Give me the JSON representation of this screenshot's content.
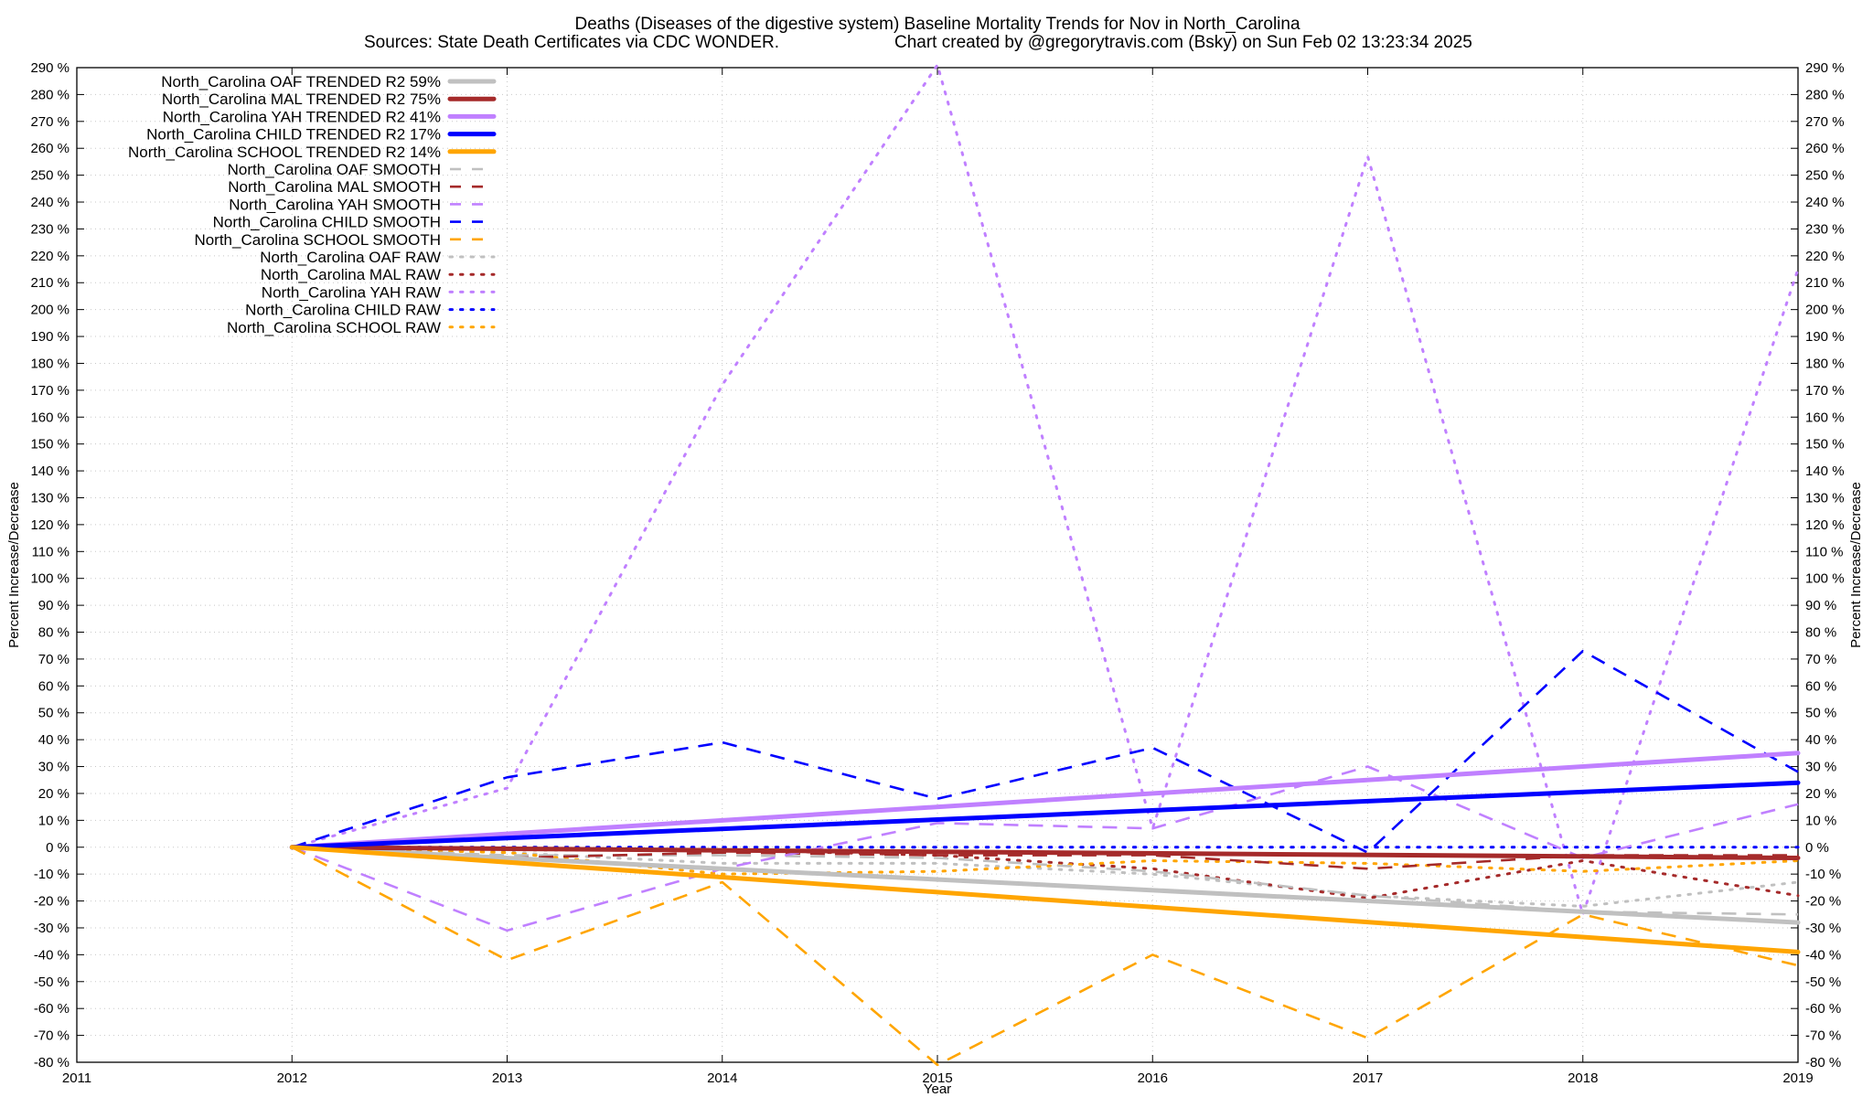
{
  "chart_data": {
    "type": "line",
    "title_line1": "Deaths (Diseases of the digestive system)  Baseline Mortality Trends for Nov in North_Carolina",
    "title_line2_left": "Sources: State Death Certificates via CDC WONDER.",
    "title_line2_right": "Chart created by @gregorytravis.com (Bsky) on Sun Feb 02 13:23:34 2025",
    "xlabel": "Year",
    "ylabel_left": "Percent Increase/Decrease",
    "ylabel_right": "Percent Increase/Decrease",
    "xlim": [
      2011,
      2019
    ],
    "ylim": [
      -80,
      290
    ],
    "x_ticks": [
      "2011",
      "2012",
      "2013",
      "2014",
      "2015",
      "2016",
      "2017",
      "2018",
      "2019"
    ],
    "y_ticks": [
      -80,
      -70,
      -60,
      -50,
      -40,
      -30,
      -20,
      -10,
      0,
      10,
      20,
      30,
      40,
      50,
      60,
      70,
      80,
      90,
      100,
      110,
      120,
      130,
      140,
      150,
      160,
      170,
      180,
      190,
      200,
      210,
      220,
      230,
      240,
      250,
      260,
      270,
      280,
      290
    ],
    "y_tick_suffix": " %",
    "grid": true,
    "legend_position": "top-left",
    "series": [
      {
        "name": "North_Carolina OAF TRENDED R2  59%",
        "color": "#c0c0c0",
        "style": "solid",
        "x": [
          2012,
          2019
        ],
        "y": [
          0,
          -28
        ]
      },
      {
        "name": "North_Carolina MAL TRENDED R2  75%",
        "color": "#a52a2a",
        "style": "solid",
        "x": [
          2012,
          2019
        ],
        "y": [
          0,
          -4
        ]
      },
      {
        "name": "North_Carolina YAH TRENDED R2  41%",
        "color": "#c080ff",
        "style": "solid",
        "x": [
          2012,
          2019
        ],
        "y": [
          0,
          35
        ]
      },
      {
        "name": "North_Carolina CHILD TRENDED R2  17%",
        "color": "#0000ff",
        "style": "solid",
        "x": [
          2012,
          2019
        ],
        "y": [
          0,
          24
        ]
      },
      {
        "name": "North_Carolina SCHOOL TRENDED R2  14%",
        "color": "#ffa500",
        "style": "solid",
        "x": [
          2012,
          2019
        ],
        "y": [
          0,
          -39
        ]
      },
      {
        "name": "North_Carolina OAF SMOOTH",
        "color": "#c0c0c0",
        "style": "dashed",
        "x": [
          2012,
          2013,
          2014,
          2015,
          2016,
          2017,
          2018,
          2019
        ],
        "y": [
          0,
          -3,
          -3,
          -4,
          -9,
          -18,
          -24,
          -25
        ]
      },
      {
        "name": "North_Carolina MAL SMOOTH",
        "color": "#a52a2a",
        "style": "dashed",
        "x": [
          2012,
          2013,
          2014,
          2015,
          2016,
          2017,
          2018,
          2019
        ],
        "y": [
          0,
          -4,
          -2,
          -3,
          -3,
          -8,
          -3,
          -3
        ]
      },
      {
        "name": "North_Carolina YAH SMOOTH",
        "color": "#c080ff",
        "style": "dashed",
        "x": [
          2012,
          2013,
          2014,
          2015,
          2016,
          2017,
          2018,
          2019
        ],
        "y": [
          0,
          -31,
          -8,
          9,
          7,
          30,
          -4,
          16
        ]
      },
      {
        "name": "North_Carolina CHILD SMOOTH",
        "color": "#0000ff",
        "style": "dashed",
        "x": [
          2012,
          2013,
          2014,
          2015,
          2016,
          2017,
          2018,
          2019
        ],
        "y": [
          0,
          26,
          39,
          18,
          37,
          -2,
          73,
          28
        ]
      },
      {
        "name": "North_Carolina SCHOOL SMOOTH",
        "color": "#ffa500",
        "style": "dashed",
        "x": [
          2012,
          2013,
          2014,
          2015,
          2016,
          2017,
          2018,
          2019
        ],
        "y": [
          0,
          -42,
          -13,
          -81,
          -40,
          -71,
          -25,
          -44
        ]
      },
      {
        "name": "North_Carolina OAF RAW",
        "color": "#c0c0c0",
        "style": "dotted",
        "x": [
          2012,
          2013,
          2014,
          2015,
          2016,
          2017,
          2018,
          2019
        ],
        "y": [
          0,
          -2,
          -6,
          -6,
          -10,
          -18,
          -22,
          -13
        ]
      },
      {
        "name": "North_Carolina MAL RAW",
        "color": "#a52a2a",
        "style": "dotted",
        "x": [
          2012,
          2013,
          2014,
          2015,
          2016,
          2017,
          2018,
          2019
        ],
        "y": [
          0,
          -1,
          -1,
          -3,
          -8,
          -19,
          -5,
          -18
        ]
      },
      {
        "name": "North_Carolina YAH RAW",
        "color": "#c080ff",
        "style": "dotted",
        "x": [
          2012,
          2013,
          2014,
          2015,
          2016,
          2017,
          2018,
          2019
        ],
        "y": [
          0,
          22,
          172,
          291,
          7,
          257,
          -25,
          215
        ]
      },
      {
        "name": "North_Carolina CHILD RAW",
        "color": "#0000ff",
        "style": "dotted",
        "x": [
          2012,
          2013,
          2014,
          2015,
          2016,
          2017,
          2018,
          2019
        ],
        "y": [
          0,
          0,
          0,
          0,
          0,
          0,
          0,
          0
        ]
      },
      {
        "name": "North_Carolina SCHOOL RAW",
        "color": "#ffa500",
        "style": "dotted",
        "x": [
          2012,
          2013,
          2014,
          2015,
          2016,
          2017,
          2018,
          2019
        ],
        "y": [
          0,
          -2,
          -10,
          -9,
          -5,
          -6,
          -9,
          -5
        ]
      }
    ]
  }
}
